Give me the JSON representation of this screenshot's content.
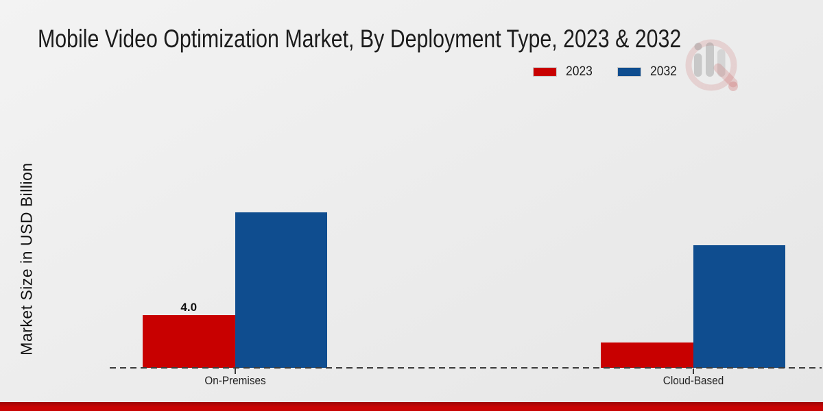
{
  "title": "Mobile Video Optimization Market, By Deployment Type, 2023 & 2032",
  "y_axis_label": "Market Size in USD Billion",
  "legend": {
    "items": [
      {
        "label": "2023",
        "color": "#c80000"
      },
      {
        "label": "2032",
        "color": "#0f4d8f"
      }
    ]
  },
  "chart_data": {
    "type": "bar",
    "title": "Mobile Video Optimization Market, By Deployment Type, 2023 & 2032",
    "categories": [
      "On-Premises",
      "Cloud-Based"
    ],
    "series": [
      {
        "name": "2023",
        "color": "#c80000",
        "values": [
          4.0,
          1.9
        ],
        "data_labels": [
          "4.0",
          ""
        ]
      },
      {
        "name": "2032",
        "color": "#0f4d8f",
        "values": [
          11.8,
          9.3
        ],
        "data_labels": [
          "",
          ""
        ]
      }
    ],
    "xlabel": "",
    "ylabel": "Market Size in USD Billion",
    "ylim": [
      0,
      13
    ],
    "grid": false,
    "axis_ticks_visible": false,
    "baseline_style": "dashed",
    "legend_position": "top-right"
  },
  "colors": {
    "background": "#ececec",
    "baseline": "#3a3a3a",
    "footer_bar": "#c90404",
    "footer_bar_dark": "#9c0707"
  }
}
